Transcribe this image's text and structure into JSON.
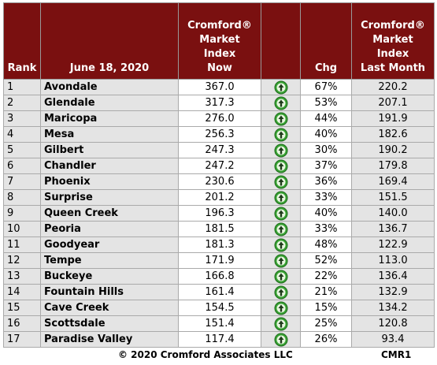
{
  "header": {
    "rank": "Rank",
    "date": "June 18, 2020",
    "index_now": "Cromford®\nMarket\nIndex\nNow",
    "chg": "Chg",
    "index_last_month": "Cromford®\nMarket\nIndex\nLast Month"
  },
  "table": {
    "rows": [
      [
        "1",
        "Avondale",
        "367.0",
        "67%",
        "220.2"
      ],
      [
        "2",
        "Glendale",
        "317.3",
        "53%",
        "207.1"
      ],
      [
        "3",
        "Maricopa",
        "276.0",
        "44%",
        "191.9"
      ],
      [
        "4",
        "Mesa",
        "256.3",
        "40%",
        "182.6"
      ],
      [
        "5",
        "Gilbert",
        "247.3",
        "30%",
        "190.2"
      ],
      [
        "6",
        "Chandler",
        "247.2",
        "37%",
        "179.8"
      ],
      [
        "7",
        "Phoenix",
        "230.6",
        "36%",
        "169.4"
      ],
      [
        "8",
        "Surprise",
        "201.2",
        "33%",
        "151.5"
      ],
      [
        "9",
        "Queen Creek",
        "196.3",
        "40%",
        "140.0"
      ],
      [
        "10",
        "Peoria",
        "181.5",
        "33%",
        "136.7"
      ],
      [
        "11",
        "Goodyear",
        "181.3",
        "48%",
        "122.9"
      ],
      [
        "12",
        "Tempe",
        "171.9",
        "52%",
        "113.0"
      ],
      [
        "13",
        "Buckeye",
        "166.8",
        "22%",
        "136.4"
      ],
      [
        "14",
        "Fountain Hills",
        "161.4",
        "21%",
        "132.9"
      ],
      [
        "15",
        "Cave Creek",
        "154.5",
        "15%",
        "134.2"
      ],
      [
        "16",
        "Scottsdale",
        "151.4",
        "25%",
        "120.8"
      ],
      [
        "17",
        "Paradise Valley",
        "117.4",
        "26%",
        "93.4"
      ]
    ]
  },
  "footer": {
    "copyright": "© 2020 Cromford Associates LLC",
    "code": "CMR1"
  }
}
